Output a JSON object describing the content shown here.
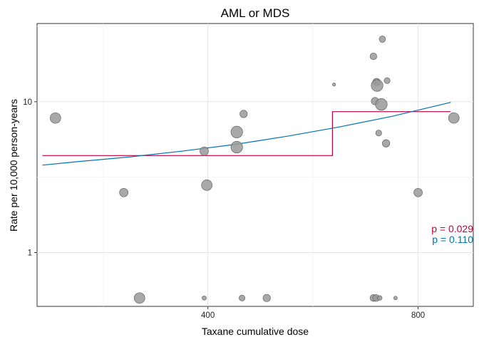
{
  "chart_data": {
    "type": "scatter",
    "title": "AML or MDS",
    "xlabel": "Taxane cumulative dose",
    "ylabel": "Rate per 10,000 person-years",
    "x_scale": "linear",
    "y_scale": "log10",
    "xlim": [
      75,
      905
    ],
    "ylim": [
      0.44,
      33
    ],
    "x_ticks": [
      400,
      800
    ],
    "x_tick_labels": [
      "400",
      "800"
    ],
    "y_ticks": [
      1,
      10
    ],
    "y_tick_labels": [
      "1",
      "10"
    ],
    "grid": true,
    "point_color": "#999999",
    "points": [
      {
        "x": 110,
        "y": 7.8,
        "size": 4
      },
      {
        "x": 240,
        "y": 2.5,
        "size": 3
      },
      {
        "x": 270,
        "y": 0.5,
        "size": 4
      },
      {
        "x": 393,
        "y": 4.7,
        "size": 3
      },
      {
        "x": 393,
        "y": 0.5,
        "size": 1
      },
      {
        "x": 398,
        "y": 2.8,
        "size": 4
      },
      {
        "x": 455,
        "y": 6.3,
        "size": 4.5
      },
      {
        "x": 455,
        "y": 5.0,
        "size": 4.5
      },
      {
        "x": 468,
        "y": 8.3,
        "size": 2.5
      },
      {
        "x": 465,
        "y": 0.5,
        "size": 1.8
      },
      {
        "x": 512,
        "y": 0.5,
        "size": 2.5
      },
      {
        "x": 640,
        "y": 13.0,
        "size": 0.5
      },
      {
        "x": 715,
        "y": 20.0,
        "size": 2.2
      },
      {
        "x": 715,
        "y": 0.5,
        "size": 2.2
      },
      {
        "x": 718,
        "y": 10.1,
        "size": 2.5
      },
      {
        "x": 720,
        "y": 0.5,
        "size": 2.2
      },
      {
        "x": 721,
        "y": 13.5,
        "size": 2.5
      },
      {
        "x": 722,
        "y": 12.8,
        "size": 4.5
      },
      {
        "x": 725,
        "y": 6.2,
        "size": 1.8
      },
      {
        "x": 727,
        "y": 0.5,
        "size": 1.2
      },
      {
        "x": 730,
        "y": 9.6,
        "size": 4.5
      },
      {
        "x": 732,
        "y": 26.0,
        "size": 2
      },
      {
        "x": 739,
        "y": 5.3,
        "size": 2.5
      },
      {
        "x": 741,
        "y": 13.8,
        "size": 1.8
      },
      {
        "x": 757,
        "y": 0.5,
        "size": 0.7
      },
      {
        "x": 800,
        "y": 2.5,
        "size": 3
      },
      {
        "x": 868,
        "y": 7.8,
        "size": 4
      }
    ],
    "series": [
      {
        "type": "step",
        "color": "#c0003c",
        "x": [
          85,
          637,
          637,
          862
        ],
        "y": [
          4.4,
          4.4,
          8.6,
          8.6
        ]
      },
      {
        "type": "line",
        "color": "#0072b2",
        "x": [
          85,
          150,
          250,
          350,
          450,
          550,
          650,
          750,
          862
        ],
        "y": [
          3.8,
          4.0,
          4.3,
          4.7,
          5.2,
          5.9,
          6.8,
          8.0,
          9.9
        ]
      }
    ],
    "annotations": [
      {
        "text": "p = 0.029",
        "color": "#c0003c"
      },
      {
        "text": "p = 0.110",
        "color": "#0072b2"
      }
    ]
  }
}
